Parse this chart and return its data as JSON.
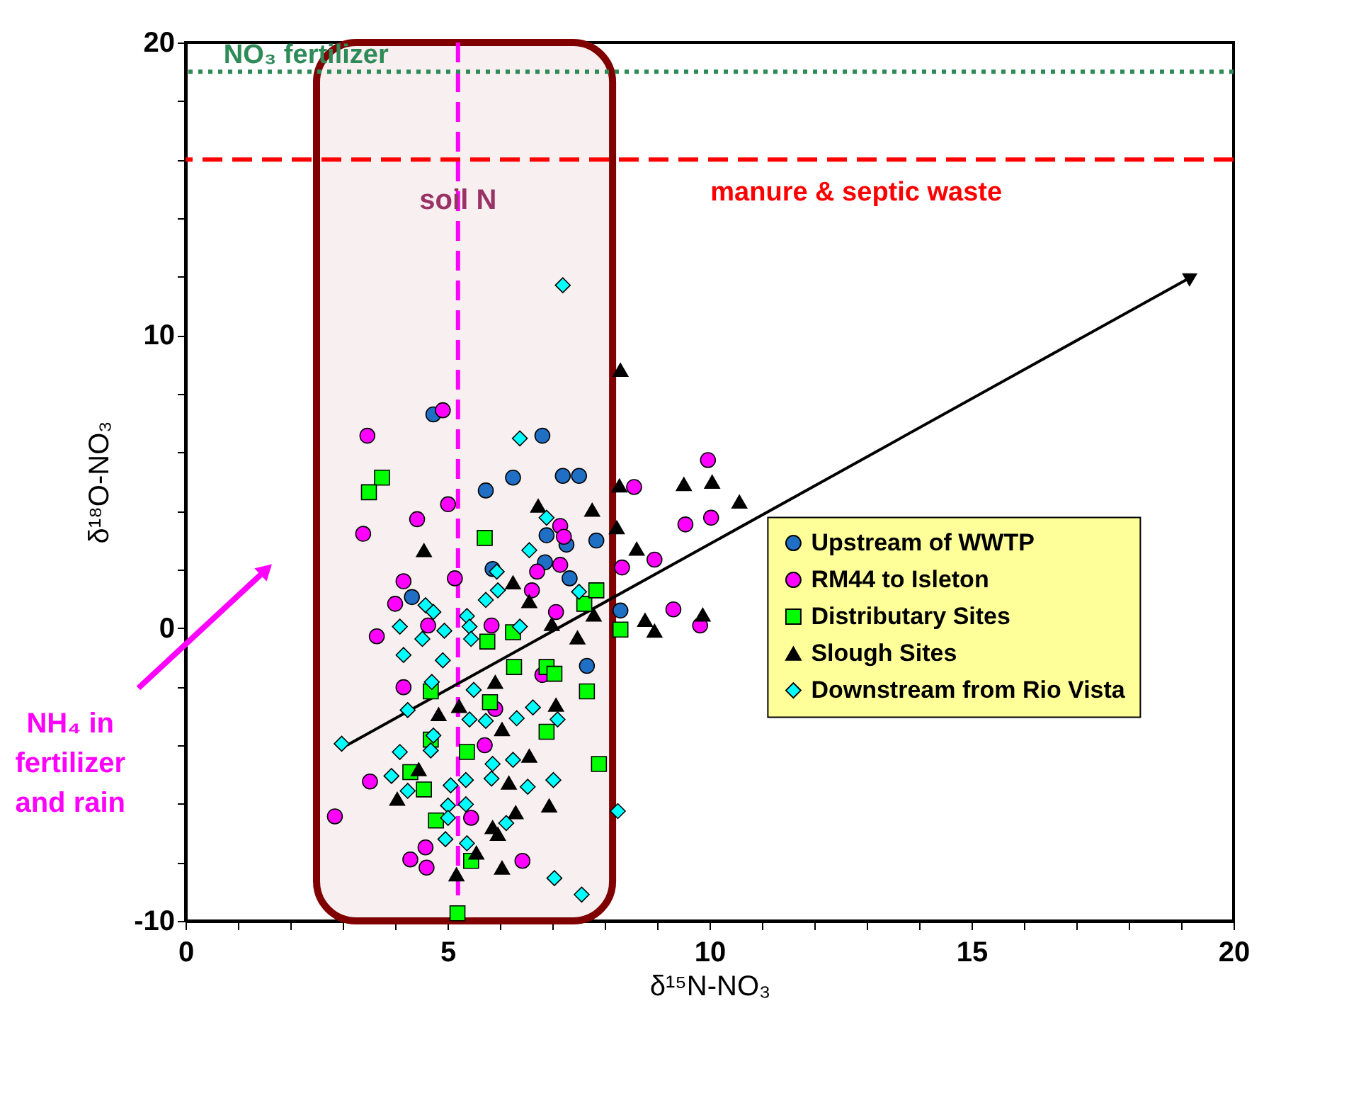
{
  "chart_data": {
    "type": "scatter",
    "xlabel": "δ¹⁵N-NO₃",
    "ylabel": "δ¹⁸O-NO₃",
    "xlim": [
      0,
      20
    ],
    "ylim": [
      -10,
      20
    ],
    "xticks": [
      0,
      {
        "value": 1,
        "label": null
      },
      {
        "value": 2,
        "label": null
      },
      {
        "value": 3,
        "label": null
      },
      {
        "value": 4,
        "label": null
      },
      5,
      {
        "value": 6,
        "label": null
      },
      {
        "value": 7,
        "label": null
      },
      {
        "value": 8,
        "label": null
      },
      {
        "value": 9,
        "label": null
      },
      10,
      {
        "value": 11,
        "label": null
      },
      {
        "value": 12,
        "label": null
      },
      {
        "value": 13,
        "label": null
      },
      {
        "value": 14,
        "label": null
      },
      15,
      {
        "value": 16,
        "label": null
      },
      {
        "value": 17,
        "label": null
      },
      {
        "value": 18,
        "label": null
      },
      {
        "value": 19,
        "label": null
      },
      20
    ],
    "yticks": [
      -10,
      {
        "value": -8,
        "label": null
      },
      {
        "value": -6,
        "label": null
      },
      {
        "value": -4,
        "label": null
      },
      {
        "value": -2,
        "label": null
      },
      0,
      {
        "value": 2,
        "label": null
      },
      {
        "value": 4,
        "label": null
      },
      {
        "value": 6,
        "label": null
      },
      {
        "value": 8,
        "label": null
      },
      10,
      {
        "value": 12,
        "label": null
      },
      {
        "value": 14,
        "label": null
      },
      {
        "value": 16,
        "label": null
      },
      {
        "value": 18,
        "label": null
      },
      20
    ],
    "grid": false,
    "legend": "right",
    "series": [
      {
        "name": "Upstream of WWTP",
        "color": "#1f6fc5",
        "marker": "circle",
        "x": [
          4.73,
          6.81,
          5.73,
          6.25,
          7.2,
          7.51,
          6.89,
          7.27,
          5.86,
          7.33,
          4.32,
          6.86,
          7.84,
          8.3,
          7.66
        ],
        "values": [
          7.3,
          6.57,
          4.7,
          5.14,
          5.2,
          5.2,
          3.17,
          2.85,
          2.02,
          1.7,
          1.06,
          2.25,
          2.99,
          0.6,
          -1.29
        ]
      },
      {
        "name": "RM44 to Isleton",
        "color": "#ff00ff",
        "marker": "circle",
        "x": [
          4.91,
          3.47,
          3.39,
          4.42,
          5.01,
          8.56,
          9.54,
          5.14,
          4.16,
          4.0,
          3.65,
          8.95,
          8.33,
          9.31,
          7.15,
          7.22,
          7.15,
          6.71,
          6.61,
          7.07,
          5.84,
          4.63,
          9.97,
          10.03,
          9.82,
          3.52,
          2.85,
          4.58,
          4.29,
          4.6,
          6.43,
          5.45,
          4.16,
          5.71,
          6.81,
          5.91
        ],
        "values": [
          7.44,
          6.57,
          3.22,
          3.72,
          4.23,
          4.82,
          3.54,
          1.7,
          1.6,
          0.83,
          -0.28,
          2.34,
          2.07,
          0.64,
          3.49,
          3.12,
          2.16,
          1.93,
          1.29,
          0.55,
          0.09,
          0.09,
          5.74,
          3.77,
          0.09,
          -5.24,
          -6.43,
          -7.49,
          -7.9,
          -8.18,
          -7.95,
          -6.48,
          -2.02,
          -4.0,
          -1.6,
          -2.76
        ]
      },
      {
        "name": "Distributary Sites",
        "color": "#00ff00",
        "marker": "square",
        "x": [
          3.75,
          3.5,
          5.71,
          7.61,
          7.84,
          8.3,
          5.76,
          6.25,
          6.27,
          6.89,
          7.04,
          7.66,
          5.81,
          6.89,
          5.37,
          4.29,
          4.55,
          7.89,
          4.78,
          5.45,
          5.19,
          4.68,
          4.68
        ],
        "values": [
          5.14,
          4.64,
          3.08,
          0.83,
          1.29,
          -0.05,
          -0.46,
          -0.14,
          -1.33,
          -1.33,
          -1.56,
          -2.16,
          -2.53,
          -3.54,
          -4.23,
          -4.92,
          -5.51,
          -4.64,
          -6.57,
          -7.95,
          -9.74,
          -3.81,
          -2.16
        ]
      },
      {
        "name": "Slough Sites",
        "color": "#000000",
        "marker": "triangle",
        "x": [
          8.3,
          8.28,
          9.51,
          10.05,
          10.57,
          8.61,
          8.23,
          7.76,
          6.73,
          8.77,
          8.95,
          9.87,
          7.79,
          4.55,
          6.99,
          6.25,
          6.56,
          7.48,
          4.83,
          5.22,
          5.91,
          6.04,
          6.56,
          4.45,
          4.04,
          6.17,
          6.94,
          6.3,
          5.86,
          5.96,
          5.55,
          6.04,
          5.17,
          7.07
        ],
        "values": [
          8.82,
          4.87,
          4.92,
          5.0,
          4.32,
          2.71,
          3.44,
          4.04,
          4.18,
          0.28,
          -0.09,
          0.46,
          0.46,
          2.66,
          0.14,
          1.56,
          0.92,
          -0.32,
          -2.94,
          -2.66,
          -1.84,
          -3.45,
          -4.36,
          -4.82,
          -5.83,
          -5.28,
          -6.06,
          -6.29,
          -6.8,
          -7.03,
          -7.67,
          -8.18,
          -8.41,
          -2.62
        ]
      },
      {
        "name": "Downstream from Rio Vista",
        "color": "#00ffff",
        "marker": "diamond",
        "x": [
          7.2,
          6.38,
          6.89,
          6.56,
          5.94,
          5.96,
          5.73,
          7.51,
          4.58,
          4.73,
          4.09,
          5.37,
          5.42,
          4.94,
          4.52,
          6.38,
          5.45,
          4.16,
          4.91,
          4.7,
          5.5,
          6.63,
          7.1,
          4.24,
          5.42,
          6.32,
          5.73,
          4.73,
          2.98,
          4.09,
          4.68,
          5.86,
          6.25,
          3.93,
          4.24,
          7.02,
          6.53,
          5.35,
          5.06,
          5.84,
          5.01,
          5.35,
          5.01,
          6.12,
          4.96,
          5.37,
          8.25,
          7.04,
          7.56
        ],
        "values": [
          11.71,
          6.48,
          3.77,
          2.66,
          1.93,
          1.29,
          0.96,
          1.24,
          0.78,
          0.55,
          0.05,
          0.41,
          0.05,
          -0.09,
          -0.37,
          0.05,
          -0.37,
          -0.92,
          -1.1,
          -1.84,
          -2.11,
          -2.71,
          -3.12,
          -2.8,
          -3.12,
          -3.08,
          -3.17,
          -3.67,
          -3.95,
          -4.23,
          -4.18,
          -4.64,
          -4.5,
          -5.05,
          -5.56,
          -5.19,
          -5.42,
          -5.19,
          -5.37,
          -5.14,
          -6.06,
          -6.02,
          -6.48,
          -6.66,
          -7.21,
          -7.35,
          -6.25,
          -8.54,
          -9.1
        ]
      },
      {
        "type": "line",
        "color": "#000000",
        "x": [
          3.08,
          19.2
        ],
        "values": [
          -4.0,
          12.0
        ]
      }
    ],
    "bands": [
      {
        "axis": "x",
        "from": 2.5,
        "to": 8.15,
        "color": "#800000"
      }
    ],
    "ref_lines": [
      {
        "axis": "y",
        "value": 16,
        "color": "#ff0000",
        "line_style": "dashed"
      },
      {
        "axis": "x",
        "value": 5.2,
        "color": "#ff00ff",
        "line_style": "dashed"
      },
      {
        "axis": "y",
        "value": 19,
        "color": "#2e8b57",
        "line_style": "dotted"
      }
    ],
    "annotations": [
      {
        "text": "soil N",
        "x": 5.2,
        "y": 14.6
      },
      "manure & septic waste",
      "NO₃ fertilizer",
      "NH₄ in\nfertilizer\nand rain"
    ]
  }
}
